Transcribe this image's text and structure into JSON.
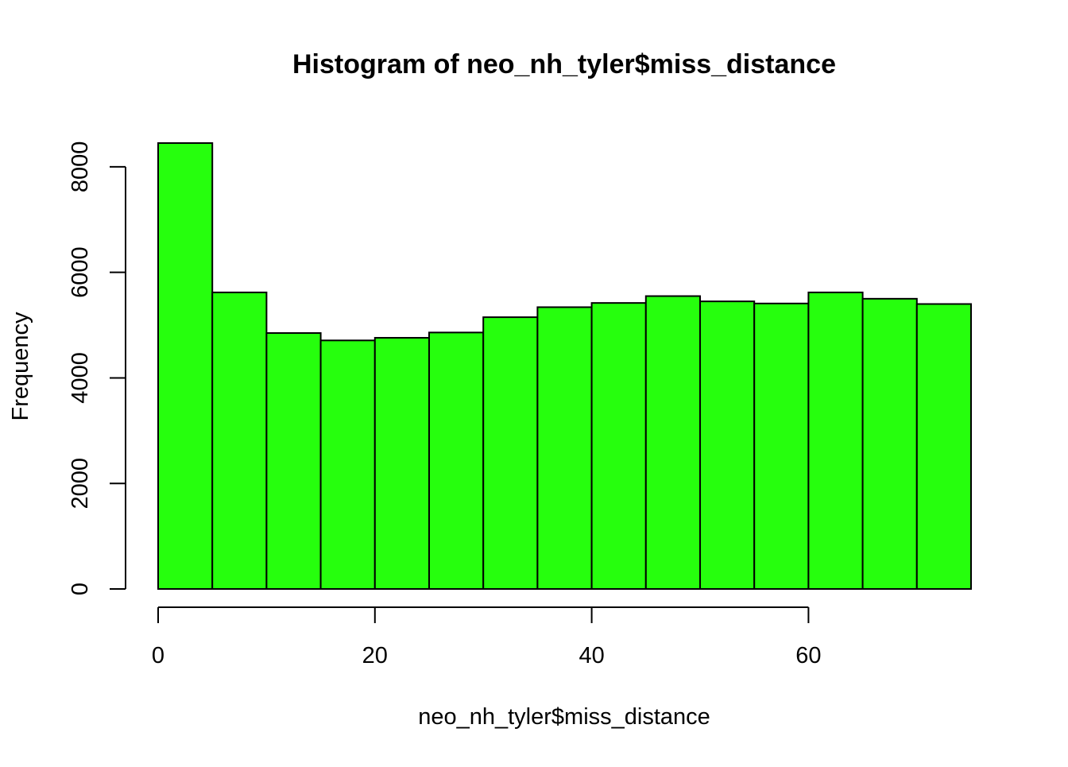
{
  "chart_data": {
    "type": "bar",
    "title": "Histogram of neo_nh_tyler$miss_distance",
    "xlabel": "neo_nh_tyler$miss_distance",
    "ylabel": "Frequency",
    "bin_edges": [
      0,
      5,
      10,
      15,
      20,
      25,
      30,
      35,
      40,
      45,
      50,
      55,
      60,
      65,
      70,
      75
    ],
    "values": [
      8450,
      5620,
      4850,
      4710,
      4760,
      4860,
      5150,
      5340,
      5420,
      5550,
      5450,
      5410,
      5620,
      5500,
      5400
    ],
    "xlim": [
      0,
      75
    ],
    "ylim": [
      0,
      8450
    ],
    "x_ticks": [
      0,
      20,
      40,
      60
    ],
    "y_ticks": [
      0,
      2000,
      4000,
      6000,
      8000
    ],
    "x_tick_labels": [
      "0",
      "20",
      "40",
      "60"
    ],
    "y_tick_labels": [
      "0",
      "2000",
      "4000",
      "6000",
      "8000"
    ],
    "grid": false,
    "bar_color": "#26ff0d",
    "edge_color": "#000000"
  }
}
